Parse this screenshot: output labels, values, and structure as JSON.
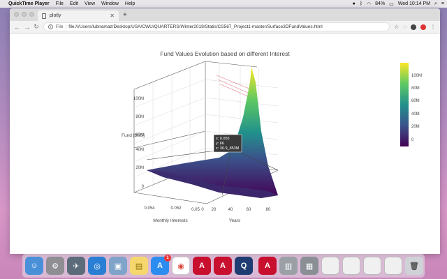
{
  "menubar": {
    "app_name": "QuickTime Player",
    "items": [
      "File",
      "Edit",
      "View",
      "Window",
      "Help"
    ],
    "battery": "84%",
    "clock": "Wed 10:14 PM"
  },
  "browser": {
    "tab_title": "plotly",
    "file_label": "File",
    "url": "file:///Users/lubnamaz/Desktop/USA/CWU/QUARTERS/Winter2019/Statis/CS567_Project1-master/Surface3DFundValues.html"
  },
  "plot": {
    "title": "Fund Values Evolution based on different Interest",
    "z_axis_title": "Fund [$US]",
    "x_axis_title": "Monthly Interests",
    "y_axis_title": "Years",
    "z_ticks": [
      "100M",
      "80M",
      "60M",
      "40M",
      "20M",
      "0"
    ],
    "x_ticks": [
      "0.054",
      "0.052",
      "0.05"
    ],
    "y_ticks": [
      "0",
      "20",
      "40",
      "60",
      "80"
    ],
    "colorbar_ticks": [
      "100M",
      "80M",
      "60M",
      "40M",
      "20M",
      "0"
    ],
    "colorscale": [
      "#440154",
      "#3b528b",
      "#21918c",
      "#5ec962",
      "#fde725"
    ],
    "hover": {
      "x": "x: 0.055",
      "y": "y: 66",
      "z": "z: 36.9_853M"
    }
  },
  "dock": {
    "icons": [
      "finder-icon",
      "launchpad-icon",
      "rocket-icon",
      "safari-icon",
      "preview-icon",
      "notes-icon",
      "appstore-icon",
      "chrome-icon",
      "acrobat-icon",
      "acrobat-icon",
      "quicktime-icon",
      "acrobat-icon",
      "archive-icon",
      "screenshot-icon",
      "window-icon",
      "window-icon",
      "window-icon",
      "window-icon",
      "trash-icon"
    ],
    "appstore_badge": "1"
  }
}
